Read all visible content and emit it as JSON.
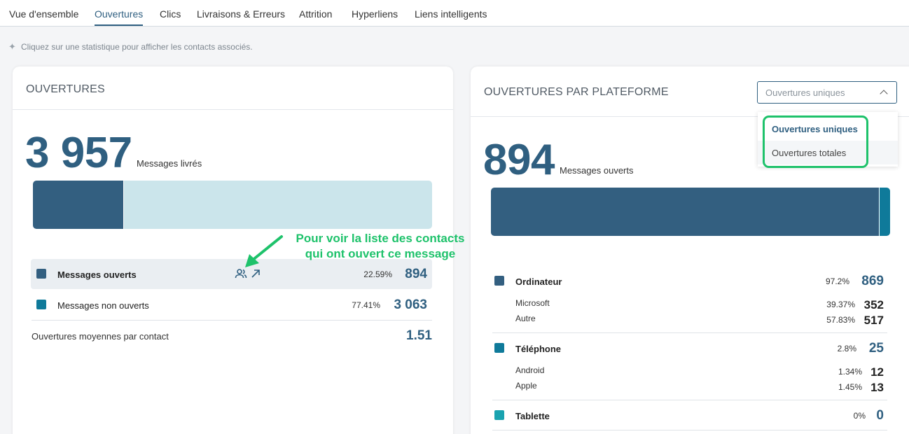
{
  "tabs": [
    "Vue d'ensemble",
    "Ouvertures",
    "Clics",
    "Livraisons & Erreurs",
    "Attrition",
    "Hyperliens",
    "Liens intelligents"
  ],
  "hint": "Cliquez sur une statistique pour afficher les contacts associés.",
  "left": {
    "title": "OUVERTURES",
    "big_value": "3 957",
    "big_label": "Messages livrés",
    "bar": {
      "opened_fraction": 0.2259
    },
    "rows": [
      {
        "label": "Messages ouverts",
        "pct": "22.59%",
        "value": "894",
        "color": "#335f80"
      },
      {
        "label": "Messages non ouverts",
        "pct": "77.41%",
        "value": "3 063",
        "color": "#0f7a9a"
      }
    ],
    "avg_label": "Ouvertures moyennes par contact",
    "avg_value": "1.51"
  },
  "annotation": [
    "Pour voir la liste des contacts",
    "qui ont ouvert ce message"
  ],
  "right": {
    "title": "OUVERTURES PAR PLATEFORME",
    "select_value": "Ouvertures uniques",
    "menu": [
      "Ouvertures uniques",
      "Ouvertures totales"
    ],
    "big_value": "894",
    "big_label": "Messages ouverts",
    "bar": {
      "desktop_fraction": 0.972,
      "phone_fraction": 0.028
    },
    "groups": [
      {
        "label": "Ordinateur",
        "pct": "97.2%",
        "value": "869",
        "color": "#335f80",
        "subs": [
          {
            "label": "Microsoft",
            "pct": "39.37%",
            "value": "352"
          },
          {
            "label": "Autre",
            "pct": "57.83%",
            "value": "517"
          }
        ]
      },
      {
        "label": "Téléphone",
        "pct": "2.8%",
        "value": "25",
        "color": "#0f7a9a",
        "subs": [
          {
            "label": "Android",
            "pct": "1.34%",
            "value": "12"
          },
          {
            "label": "Apple",
            "pct": "1.45%",
            "value": "13"
          }
        ]
      },
      {
        "label": "Tablette",
        "pct": "0%",
        "value": "0",
        "color": "#1aa3b0",
        "subs": []
      }
    ]
  }
}
